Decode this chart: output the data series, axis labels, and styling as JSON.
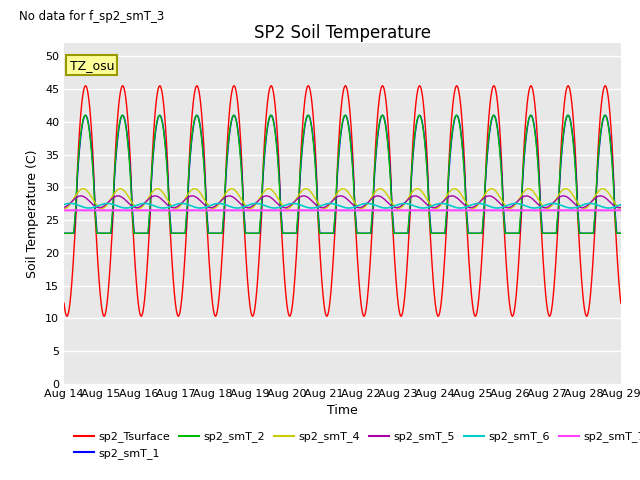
{
  "title": "SP2 Soil Temperature",
  "ylabel": "Soil Temperature (C)",
  "xlabel": "Time",
  "note": "No data for f_sp2_smT_3",
  "tz_label": "TZ_osu",
  "ylim": [
    0,
    52
  ],
  "yticks": [
    0,
    5,
    10,
    15,
    20,
    25,
    30,
    35,
    40,
    45,
    50
  ],
  "series": {
    "sp2_Tsurface": {
      "color": "#FF0000",
      "lw": 1.0
    },
    "sp2_smT_1": {
      "color": "#0000FF",
      "lw": 1.0
    },
    "sp2_smT_2": {
      "color": "#00BB00",
      "lw": 1.0
    },
    "sp2_smT_4": {
      "color": "#CCCC00",
      "lw": 1.0
    },
    "sp2_smT_5": {
      "color": "#AA00AA",
      "lw": 1.0
    },
    "sp2_smT_6": {
      "color": "#00CCCC",
      "lw": 1.2
    },
    "sp2_smT_7": {
      "color": "#FF44FF",
      "lw": 1.5
    }
  },
  "axes_facecolor": "#E8E8E8",
  "fig_facecolor": "#FFFFFF",
  "grid_color": "#FFFFFF",
  "x_tick_labels": [
    "Aug 14",
    "Aug 15",
    "Aug 16",
    "Aug 17",
    "Aug 18",
    "Aug 19",
    "Aug 20",
    "Aug 21",
    "Aug 22",
    "Aug 23",
    "Aug 24",
    "Aug 25",
    "Aug 26",
    "Aug 27",
    "Aug 28",
    "Aug 29"
  ]
}
